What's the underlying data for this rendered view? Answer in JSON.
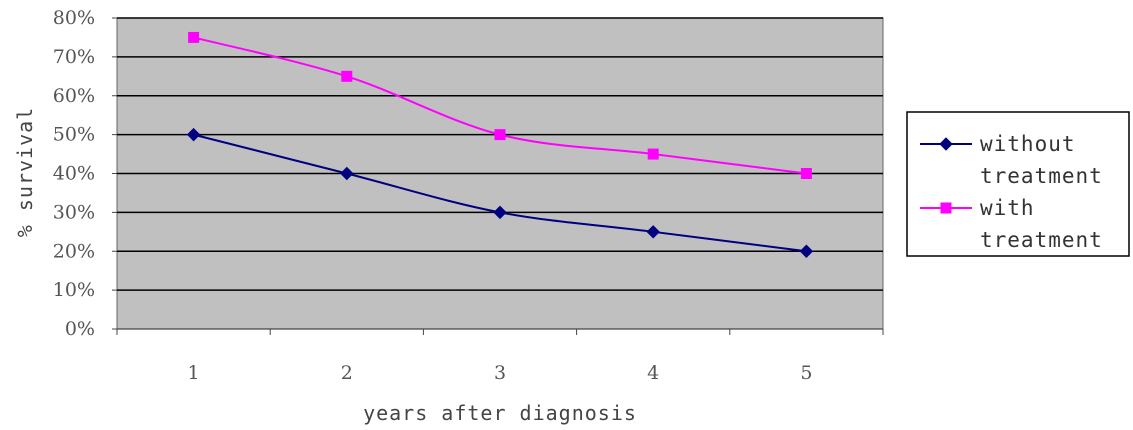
{
  "chart_data": {
    "type": "line",
    "title": "",
    "xlabel": "years after diagnosis",
    "ylabel": "% survival",
    "categories": [
      "1",
      "2",
      "3",
      "4",
      "5"
    ],
    "y_tick_labels": [
      "0%",
      "10%",
      "20%",
      "30%",
      "40%",
      "50%",
      "60%",
      "70%",
      "80%"
    ],
    "ylim": [
      0,
      80
    ],
    "grid": true,
    "legend_position": "right",
    "plot_background": "#c0c0c0",
    "series": [
      {
        "name_lines": [
          "without",
          "treatment"
        ],
        "marker": "diamond",
        "color": "#000080",
        "values": [
          50,
          40,
          30,
          25,
          20
        ]
      },
      {
        "name_lines": [
          "with",
          "treatment"
        ],
        "marker": "square",
        "color": "#ff00ff",
        "values": [
          75,
          65,
          50,
          45,
          40
        ]
      }
    ]
  }
}
